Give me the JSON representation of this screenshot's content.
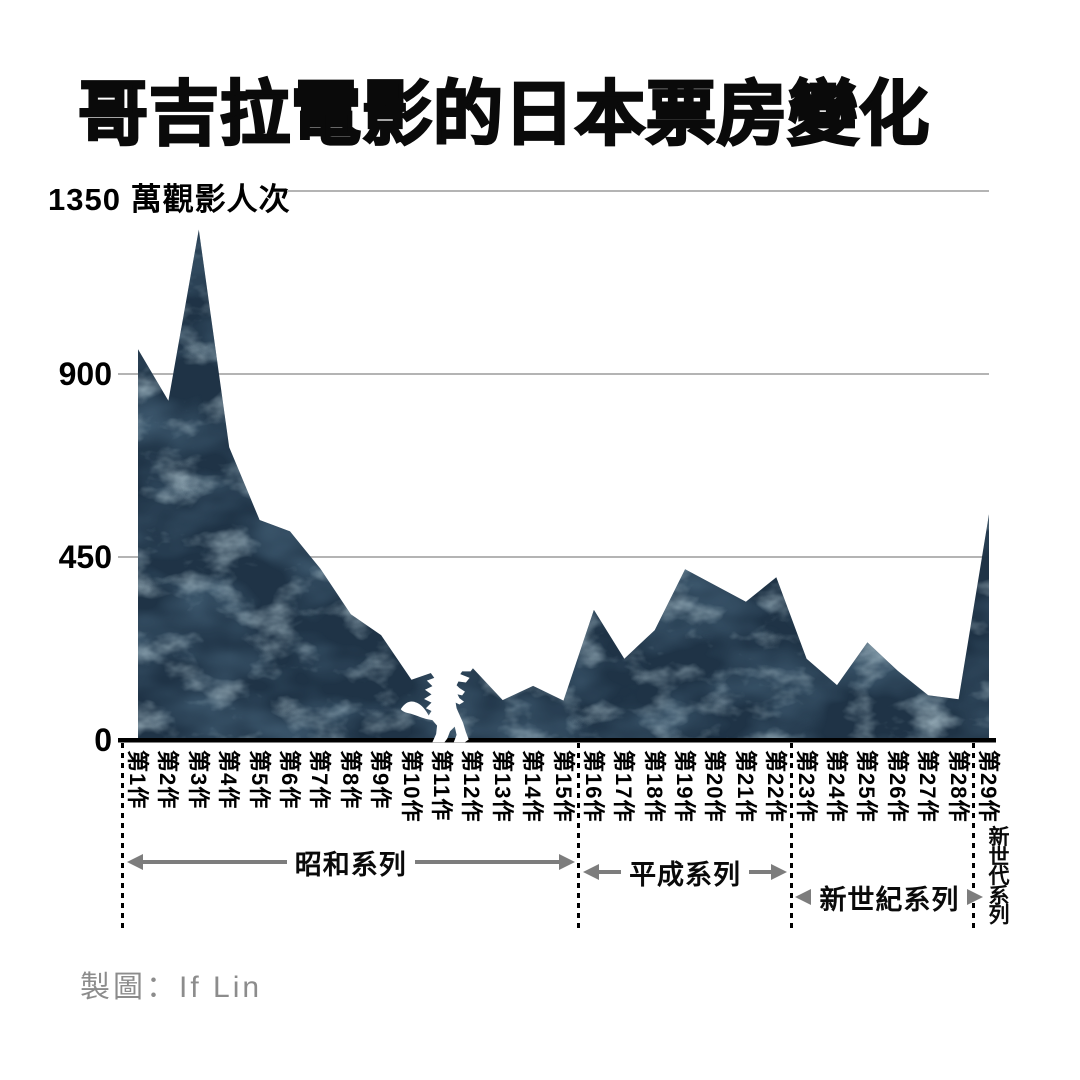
{
  "title": "哥吉拉電影的日本票房變化",
  "credit": "製圖：If Lin",
  "y_axis": {
    "top_label": "1350 萬觀影人次",
    "unit": "萬觀影人次"
  },
  "chart_data": {
    "type": "area",
    "title": "哥吉拉電影的日本票房變化",
    "ylabel": "萬觀影人次",
    "categories": [
      "第1作",
      "第2作",
      "第3作",
      "第4作",
      "第5作",
      "第6作",
      "第7作",
      "第8作",
      "第9作",
      "第10作",
      "第11作",
      "第12作",
      "第13作",
      "第14作",
      "第15作",
      "第16作",
      "第17作",
      "第18作",
      "第19作",
      "第20作",
      "第21作",
      "第22作",
      "第23作",
      "第24作",
      "第25作",
      "第26作",
      "第27作",
      "第28作",
      "第29作"
    ],
    "values": [
      961,
      834,
      1255,
      720,
      541,
      513,
      421,
      309,
      258,
      148,
      174,
      178,
      98,
      133,
      97,
      320,
      200,
      270,
      420,
      380,
      340,
      400,
      200,
      135,
      240,
      170,
      110,
      100,
      555
    ],
    "ylim": [
      0,
      1350
    ],
    "yticks": [
      0,
      450,
      900,
      1350
    ],
    "grid": "horizontal",
    "legend": "none",
    "eras": [
      {
        "label": "昭和系列",
        "from": 1,
        "to": 15,
        "orientation": "horizontal"
      },
      {
        "label": "平成系列",
        "from": 16,
        "to": 22,
        "orientation": "horizontal"
      },
      {
        "label": "新世紀系列",
        "from": 23,
        "to": 28,
        "orientation": "horizontal"
      },
      {
        "label": "新世代系列",
        "from": 29,
        "to": 29,
        "orientation": "vertical"
      }
    ],
    "icon": "godzilla-icon",
    "colors": {
      "area_base": "#1f3346",
      "area_highlight": "#8fb2bc",
      "gridline": "#b4b4b4",
      "axis": "#000000",
      "arrow": "#7d7d7d",
      "boundary": "#000000",
      "credit": "#8c8c8c",
      "godzilla": "#ffffff",
      "background": "#ffffff"
    }
  }
}
